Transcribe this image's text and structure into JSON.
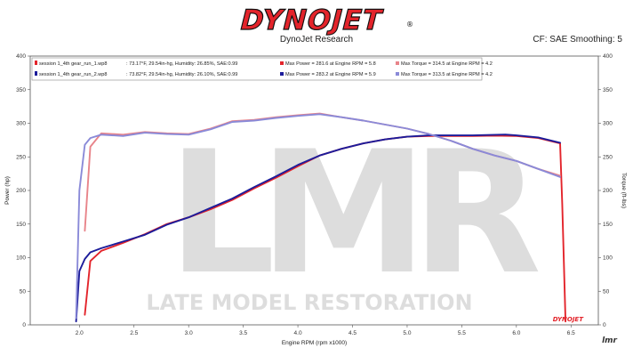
{
  "brand": {
    "logo_text": "DYNOJET",
    "logo_mark": "®",
    "subtitle": "DynoJet Research",
    "cf_smoothing": "CF: SAE Smoothing: 5",
    "colors": {
      "red": "#e3242b",
      "black": "#111111"
    }
  },
  "watermark": {
    "text": "LATE MODEL RESTORATION",
    "corner_mark": "lmr",
    "footer_logo": "DYNOJET"
  },
  "legend": {
    "rows": [
      {
        "file": "session 1_4th gear_run_1.wp8",
        "conditions": ": 73.17°F, 29.54in-hg, Humidity: 26.85%, SAE:0.99",
        "power": "Max Power = 281.6 at Engine RPM = 5.8",
        "torque": "Max Torque = 314.5 at Engine RPM = 4.2"
      },
      {
        "file": "session 1_4th gear_run_2.wp8",
        "conditions": ": 73.82°F, 29.54in-hg, Humidity: 26.10%, SAE:0.99",
        "power": "Max Power = 283.2 at Engine RPM = 5.9",
        "torque": "Max Torque = 313.5 at Engine RPM = 4.2"
      }
    ]
  },
  "chart_data": {
    "type": "line",
    "xlabel": "Engine RPM (rpm x1000)",
    "ylabel": "Power (hp)",
    "y2label": "Torque (ft-lbs)",
    "xlim": [
      1.55,
      6.75
    ],
    "ylim": [
      0,
      400
    ],
    "y2lim": [
      0,
      400
    ],
    "xticks": [
      "2.0",
      "2.5",
      "3.0",
      "3.5",
      "4.0",
      "4.5",
      "5.0",
      "5.5",
      "6.0",
      "6.5"
    ],
    "yticks": [
      "0",
      "50",
      "100",
      "150",
      "200",
      "250",
      "300",
      "350",
      "400"
    ],
    "legend_position": "top",
    "grid": false,
    "series": [
      {
        "name": "session 1_4th gear_run_1.wp8 - Power",
        "color": "#e3242b",
        "x": [
          2.05,
          2.1,
          2.2,
          2.4,
          2.6,
          2.8,
          3.0,
          3.2,
          3.4,
          3.6,
          3.8,
          4.0,
          4.2,
          4.4,
          4.6,
          4.8,
          5.0,
          5.2,
          5.4,
          5.6,
          5.8,
          6.0,
          6.2,
          6.4,
          6.42,
          6.45
        ],
        "y": [
          15,
          95,
          110,
          122,
          135,
          150,
          160,
          172,
          186,
          203,
          219,
          236,
          252,
          262,
          270,
          276,
          280,
          281,
          281,
          281,
          281.6,
          281,
          278,
          270,
          180,
          5
        ]
      },
      {
        "name": "session 1_4th gear_run_1.wp8 - Torque",
        "color": "#e8848a",
        "x": [
          2.05,
          2.1,
          2.2,
          2.4,
          2.6,
          2.8,
          3.0,
          3.2,
          3.4,
          3.6,
          3.8,
          4.0,
          4.2,
          4.4,
          4.6,
          4.8,
          5.0,
          5.2,
          5.4,
          5.6,
          5.8,
          6.0,
          6.2,
          6.4
        ],
        "y": [
          140,
          265,
          285,
          283,
          287,
          285,
          284,
          292,
          303,
          305,
          309,
          312,
          314.5,
          309,
          304,
          298,
          292,
          284,
          274,
          262,
          252,
          244,
          232,
          222
        ]
      },
      {
        "name": "session 1_4th gear_run_2.wp8 - Power",
        "color": "#1c1c9a",
        "x": [
          1.97,
          2.0,
          2.05,
          2.1,
          2.2,
          2.4,
          2.6,
          2.8,
          3.0,
          3.2,
          3.4,
          3.6,
          3.8,
          4.0,
          4.2,
          4.4,
          4.6,
          4.8,
          5.0,
          5.2,
          5.4,
          5.6,
          5.9,
          6.0,
          6.2,
          6.4
        ],
        "y": [
          5,
          80,
          98,
          108,
          114,
          124,
          134,
          149,
          160,
          174,
          188,
          205,
          221,
          238,
          252,
          262,
          270,
          276,
          280,
          282,
          282,
          282,
          283.2,
          282,
          279,
          271
        ]
      },
      {
        "name": "session 1_4th gear_run_2.wp8 - Torque",
        "color": "#8a8ad8",
        "x": [
          1.97,
          2.0,
          2.05,
          2.1,
          2.2,
          2.4,
          2.6,
          2.8,
          3.0,
          3.2,
          3.4,
          3.6,
          3.8,
          4.0,
          4.2,
          4.4,
          4.6,
          4.8,
          5.0,
          5.2,
          5.4,
          5.6,
          5.8,
          6.0,
          6.2,
          6.4
        ],
        "y": [
          10,
          200,
          268,
          278,
          283,
          281,
          286,
          284,
          283,
          291,
          302,
          304,
          308,
          311,
          313.5,
          309,
          304,
          298,
          292,
          284,
          274,
          262,
          252,
          244,
          232,
          220
        ]
      }
    ]
  }
}
